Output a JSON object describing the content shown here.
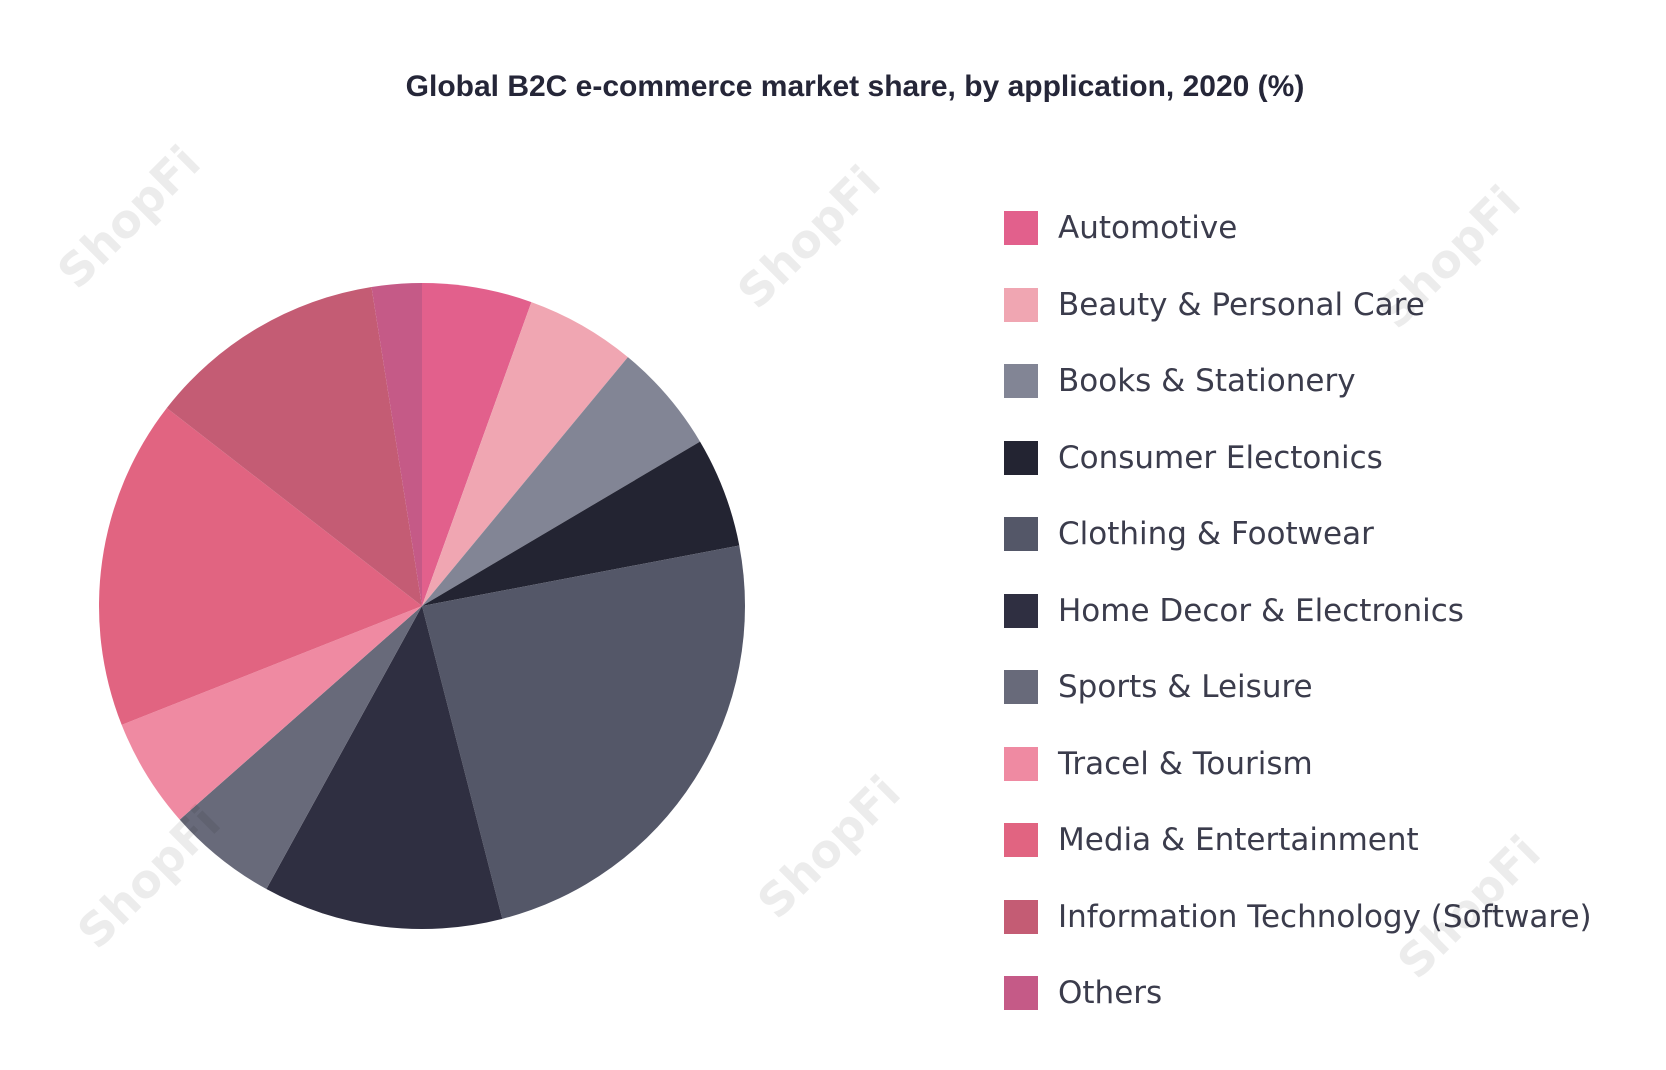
{
  "chart_data": {
    "type": "pie",
    "title": "Global B2C e-commerce market share, by application, 2020 (%)",
    "legend_position": "right",
    "slices": [
      {
        "label": "Automotive",
        "value": 5.5,
        "color": "#e2608c"
      },
      {
        "label": "Beauty & Personal Care",
        "value": 5.5,
        "color": "#f0a6b2"
      },
      {
        "label": "Books & Stationery",
        "value": 5.5,
        "color": "#828595"
      },
      {
        "label": "Consumer Electonics",
        "value": 5.5,
        "color": "#232432"
      },
      {
        "label": "Clothing & Footwear",
        "value": 24,
        "color": "#545768"
      },
      {
        "label": "Home Decor & Electronics",
        "value": 12,
        "color": "#2f2f41"
      },
      {
        "label": "Sports & Leisure",
        "value": 5.5,
        "color": "#686a7a"
      },
      {
        "label": "Tracel & Tourism",
        "value": 5.5,
        "color": "#ef8aa2"
      },
      {
        "label": "Media & Entertainment",
        "value": 16.5,
        "color": "#e16481"
      },
      {
        "label": "Information Technology (Software)",
        "value": 12,
        "color": "#c45c74"
      },
      {
        "label": "Others",
        "value": 2.5,
        "color": "#c55a87"
      }
    ]
  },
  "watermark": {
    "text": "ShopFi"
  }
}
